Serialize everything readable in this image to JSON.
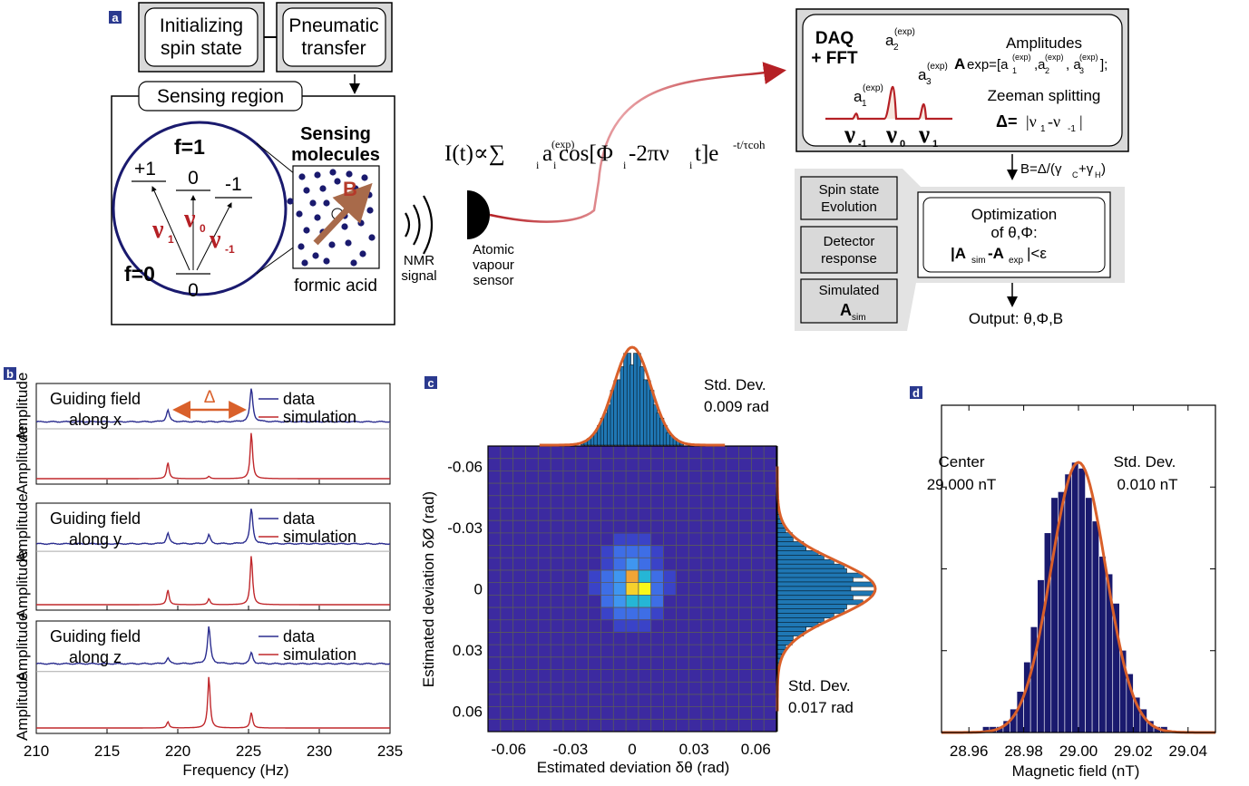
{
  "panel_a": {
    "label": "a",
    "box_init": [
      "Initializing",
      "spin state"
    ],
    "box_transfer": [
      "Pneumatic",
      "transfer"
    ],
    "sensing_region": "Sensing region",
    "f1": "f=1",
    "f0": "f=0",
    "lvl_p1": "+1",
    "lvl_0": "0",
    "lvl_m1": "-1",
    "lvl_00": "0",
    "nu1": "ν",
    "nu1_sub": "1",
    "nu0": "ν",
    "nu0_sub": "0",
    "num1": "ν",
    "num1_sub": "-1",
    "sensing_molecules": [
      "Sensing",
      "molecules"
    ],
    "B_label": "B",
    "formic_acid": "formic acid",
    "nmr_signal": [
      "NMR",
      "signal"
    ],
    "atomic_sensor": [
      "Atomic",
      "vapour",
      "sensor"
    ],
    "equation": {
      "lhs": "I(t)∝∑",
      "sub_i": "i",
      "a": "a",
      "exp_sup": "(exp)",
      "cos": "cos[Φ",
      "mid": "-2πν",
      "t": "t]e",
      "decay_sup": "-t/τcoh"
    },
    "daq": [
      "DAQ",
      "+ FFT"
    ],
    "peak_a1": "a",
    "peak_a1_sub": "1",
    "peak_a2": "a",
    "peak_a2_sub": "2",
    "peak_a3": "a",
    "peak_a3_sub": "3",
    "peak_exp": "(exp)",
    "peak_nu": [
      "ν",
      "ν",
      "ν"
    ],
    "peak_nu_sub": [
      "-1",
      "0",
      "1"
    ],
    "amplitudes": "Amplitudes",
    "amp_formula": "A",
    "amp_formula_rest": "exp=[a",
    "amp_formula_sep": ",a",
    "amp_formula_sep2": ", a",
    "amp_formula_end": "];",
    "amp_formula_sub": [
      "1",
      "2",
      "3"
    ],
    "zeeman": "Zeeman splitting",
    "delta_def": "Δ=",
    "delta_expr": "|ν",
    "delta_expr_mid": "-ν",
    "delta_expr_end": "|",
    "delta_sub": [
      "1",
      "-1"
    ],
    "b_formula": "B=Δ/(γ",
    "b_formula_c": "C",
    "b_formula_plus": "+γ",
    "b_formula_h": "H",
    "b_formula_end": ")",
    "spin_evol": [
      "Spin state",
      "Evolution"
    ],
    "detector": [
      "Detector",
      "response"
    ],
    "simulated": "Simulated",
    "A_sim": "A",
    "sim_sub": "sim",
    "optim": [
      "Optimization",
      "of θ,Φ:"
    ],
    "optim_expr": "|A",
    "optim_sim": "sim",
    "optim_minus": "-A",
    "optim_exp": "exp",
    "optim_end": "|<ε",
    "output": "Output: θ,Φ,B",
    "colors": {
      "dark_red": "#b52025",
      "navy": "#1a1a6e",
      "orange": "#d9602a",
      "box_gray": "#d9d9d9"
    }
  },
  "panel_b": {
    "label": "b",
    "xlabel": "Frequency (Hz)",
    "ylabel": "Amplitude",
    "xticks": [
      "210",
      "215",
      "220",
      "225",
      "230",
      "235"
    ],
    "delta": "Δ",
    "subplots": [
      {
        "title": [
          "Guiding field",
          "along x"
        ],
        "legend": [
          "data",
          "simulation"
        ]
      },
      {
        "title": [
          "Guiding field",
          "along y"
        ],
        "legend": [
          "data",
          "simulation"
        ]
      },
      {
        "title": [
          "Guiding field",
          "along z"
        ],
        "legend": [
          "data",
          "simulation"
        ]
      }
    ],
    "colors": {
      "data": "#2b2d8f",
      "simulation": "#c0282c"
    }
  },
  "panel_c": {
    "label": "c",
    "xlabel": "Estimated deviation δθ (rad)",
    "ylabel": "Estimated deviation δØ (rad)",
    "xticks": [
      "-0.06",
      "-0.03",
      "0",
      "0.03",
      "0.06"
    ],
    "yticks": [
      "-0.06",
      "-0.03",
      "0",
      "0.03",
      "0.06"
    ],
    "std_top": [
      "Std. Dev.",
      "0.009 rad"
    ],
    "std_right": [
      "Std. Dev.",
      "0.017 rad"
    ]
  },
  "panel_d": {
    "label": "d",
    "xlabel": "Magnetic field (nT)",
    "xticks": [
      "28.96",
      "28.98",
      "29.00",
      "29.02",
      "29.04"
    ],
    "center": [
      "Center",
      "29.000 nT"
    ],
    "std": [
      "Std. Dev.",
      "0.010 nT"
    ]
  },
  "chart_data": [
    {
      "type": "line",
      "panel": "b",
      "xlabel": "Frequency (Hz)",
      "ylabel": "Amplitude",
      "xlim": [
        210,
        235
      ],
      "peaks_hz": [
        219.3,
        222.2,
        225.2
      ],
      "series": [
        {
          "name": "data",
          "subplot": "along x",
          "peak_heights": [
            0.35,
            0.0,
            1.0
          ]
        },
        {
          "name": "simulation",
          "subplot": "along x",
          "peak_heights": [
            0.35,
            0.05,
            1.0
          ]
        },
        {
          "name": "data",
          "subplot": "along y",
          "peak_heights": [
            0.3,
            0.25,
            1.0
          ]
        },
        {
          "name": "simulation",
          "subplot": "along y",
          "peak_heights": [
            0.3,
            0.12,
            1.0
          ]
        },
        {
          "name": "data",
          "subplot": "along z",
          "peak_heights": [
            0.15,
            1.0,
            0.3
          ]
        },
        {
          "name": "simulation",
          "subplot": "along z",
          "peak_heights": [
            0.12,
            1.0,
            0.3
          ]
        }
      ]
    },
    {
      "type": "heatmap",
      "panel": "c",
      "xlabel": "Estimated deviation δθ (rad)",
      "ylabel": "Estimated deviation δØ (rad)",
      "xlim": [
        -0.07,
        0.07
      ],
      "ylim": [
        0.07,
        -0.07
      ],
      "nonzero_cells": [
        {
          "dtheta": -0.006,
          "dphi": -0.024,
          "level": 1
        },
        {
          "dtheta": 0.0,
          "dphi": -0.024,
          "level": 1
        },
        {
          "dtheta": 0.006,
          "dphi": -0.024,
          "level": 1
        },
        {
          "dtheta": -0.012,
          "dphi": -0.018,
          "level": 1
        },
        {
          "dtheta": -0.006,
          "dphi": -0.018,
          "level": 2
        },
        {
          "dtheta": 0.0,
          "dphi": -0.018,
          "level": 2
        },
        {
          "dtheta": 0.006,
          "dphi": -0.018,
          "level": 2
        },
        {
          "dtheta": 0.012,
          "dphi": -0.018,
          "level": 1
        },
        {
          "dtheta": -0.012,
          "dphi": -0.012,
          "level": 1
        },
        {
          "dtheta": -0.006,
          "dphi": -0.012,
          "level": 2
        },
        {
          "dtheta": 0.0,
          "dphi": -0.012,
          "level": 3
        },
        {
          "dtheta": 0.006,
          "dphi": -0.012,
          "level": 2
        },
        {
          "dtheta": 0.012,
          "dphi": -0.012,
          "level": 1
        },
        {
          "dtheta": -0.018,
          "dphi": -0.006,
          "level": 1
        },
        {
          "dtheta": -0.012,
          "dphi": -0.006,
          "level": 2
        },
        {
          "dtheta": -0.006,
          "dphi": -0.006,
          "level": 3
        },
        {
          "dtheta": 0.0,
          "dphi": -0.006,
          "level": 5
        },
        {
          "dtheta": 0.006,
          "dphi": -0.006,
          "level": 4
        },
        {
          "dtheta": 0.012,
          "dphi": -0.006,
          "level": 2
        },
        {
          "dtheta": 0.018,
          "dphi": -0.006,
          "level": 1
        },
        {
          "dtheta": -0.018,
          "dphi": 0.0,
          "level": 1
        },
        {
          "dtheta": -0.012,
          "dphi": 0.0,
          "level": 2
        },
        {
          "dtheta": -0.006,
          "dphi": 0.0,
          "level": 3
        },
        {
          "dtheta": 0.0,
          "dphi": 0.0,
          "level": 6
        },
        {
          "dtheta": 0.006,
          "dphi": 0.0,
          "level": 7
        },
        {
          "dtheta": 0.012,
          "dphi": 0.0,
          "level": 2
        },
        {
          "dtheta": 0.018,
          "dphi": 0.0,
          "level": 1
        },
        {
          "dtheta": -0.012,
          "dphi": 0.006,
          "level": 2
        },
        {
          "dtheta": -0.006,
          "dphi": 0.006,
          "level": 3
        },
        {
          "dtheta": 0.0,
          "dphi": 0.006,
          "level": 4
        },
        {
          "dtheta": 0.006,
          "dphi": 0.006,
          "level": 4
        },
        {
          "dtheta": 0.012,
          "dphi": 0.006,
          "level": 2
        },
        {
          "dtheta": -0.012,
          "dphi": 0.012,
          "level": 1
        },
        {
          "dtheta": -0.006,
          "dphi": 0.012,
          "level": 2
        },
        {
          "dtheta": 0.0,
          "dphi": 0.012,
          "level": 2
        },
        {
          "dtheta": 0.006,
          "dphi": 0.012,
          "level": 2
        },
        {
          "dtheta": 0.012,
          "dphi": 0.012,
          "level": 1
        },
        {
          "dtheta": -0.006,
          "dphi": 0.018,
          "level": 1
        },
        {
          "dtheta": 0.0,
          "dphi": 0.018,
          "level": 1
        },
        {
          "dtheta": 0.006,
          "dphi": 0.018,
          "level": 1
        }
      ],
      "top_histogram": {
        "type": "bar",
        "std_dev_rad": 0.009,
        "center": 0.0
      },
      "right_histogram": {
        "type": "bar",
        "std_dev_rad": 0.017,
        "center": 0.0
      }
    },
    {
      "type": "bar",
      "panel": "d",
      "xlabel": "Magnetic field (nT)",
      "xlim": [
        28.95,
        29.05
      ],
      "bin_width": 0.0025,
      "bin_starts": [
        28.965,
        28.9675,
        28.97,
        28.9725,
        28.975,
        28.9775,
        28.98,
        28.9825,
        28.985,
        28.9875,
        28.99,
        28.9925,
        28.995,
        28.9975,
        29.0,
        29.0025,
        29.005,
        29.0075,
        29.01,
        29.0125,
        29.015,
        29.0175,
        29.02,
        29.0225,
        29.025,
        29.0275,
        29.03
      ],
      "counts": [
        1,
        1,
        1,
        2,
        4,
        7,
        12,
        18,
        26,
        34,
        40,
        41,
        44,
        46,
        45,
        40,
        36,
        30,
        27,
        22,
        14,
        10,
        6,
        4,
        2,
        1,
        1
      ],
      "fit": {
        "center_nT": 29.0,
        "std_dev_nT": 0.01
      }
    }
  ]
}
